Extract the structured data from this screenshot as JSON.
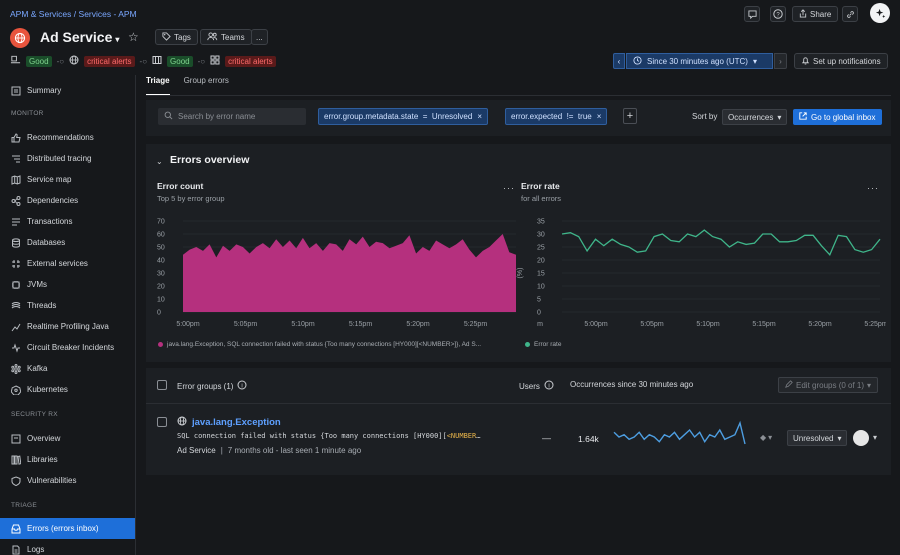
{
  "breadcrumb": {
    "part1": "APM & Services",
    "separator": "/",
    "part2": "Services - APM"
  },
  "entity": {
    "name": "Ad Service"
  },
  "header": {
    "tags_label": "Tags",
    "teams_label": "Teams",
    "more_label": "...",
    "share_label": "Share"
  },
  "status_row": {
    "items": [
      {
        "badge": "Good",
        "type": "good"
      },
      {
        "badge": "critical alerts",
        "type": "crit"
      },
      {
        "badge": "Good",
        "type": "good"
      },
      {
        "badge": "critical alerts",
        "type": "crit"
      }
    ]
  },
  "timepicker": {
    "label": "Since 30 minutes ago (UTC)"
  },
  "notifications": {
    "label": "Set up notifications"
  },
  "sidebar": {
    "summary": "Summary",
    "section_monitor": "MONITOR",
    "monitor_items": [
      "Recommendations",
      "Distributed tracing",
      "Service map",
      "Dependencies",
      "Transactions",
      "Databases",
      "External services",
      "JVMs",
      "Threads",
      "Realtime Profiling Java",
      "Circuit Breaker Incidents",
      "Kafka",
      "Kubernetes"
    ],
    "section_security": "SECURITY RX",
    "security_items": [
      "Overview",
      "Libraries",
      "Vulnerabilities"
    ],
    "section_triage": "TRIAGE",
    "triage_items": [
      "Errors (errors inbox)",
      "Logs"
    ]
  },
  "tabs": [
    "Triage",
    "Group errors"
  ],
  "filters": {
    "search_placeholder": "Search by error name",
    "chip1": "error.group.metadata.state  =  Unresolved",
    "chip2": "error.expected  !=  true",
    "sort_label": "Sort by",
    "sort_value": "Occurrences",
    "global_inbox": "Go to global inbox"
  },
  "overview": {
    "title": "Errors overview"
  },
  "error_count_chart": {
    "title": "Error count",
    "subtitle": "Top 5 by error group",
    "legend": "java.lang.Exception, SQL connection failed with status {Too many connections [HY000][<NUMBER>]}, Ad S..."
  },
  "error_rate_chart": {
    "title": "Error rate",
    "subtitle": "for all errors",
    "unit": "(%)",
    "legend": "Error rate"
  },
  "chart_data": [
    {
      "type": "area",
      "title": "Error count",
      "subtitle": "Top 5 by error group",
      "ylim": [
        0,
        70
      ],
      "y_ticks": [
        "0",
        "10",
        "20",
        "30",
        "40",
        "50",
        "60",
        "70"
      ],
      "x_ticks": [
        "5:00pm",
        "5:05pm",
        "5:10pm",
        "5:15pm",
        "5:20pm",
        "5:25pm"
      ],
      "color": "#b5307e",
      "series": [
        {
          "name": "java.lang.Exception, SQL connection failed with status {Too many connections [HY000][<NUMBER>]}, Ad S...",
          "values": [
            44,
            48,
            50,
            47,
            52,
            42,
            51,
            47,
            52,
            50,
            45,
            50,
            53,
            49,
            56,
            50,
            55,
            49,
            57,
            49,
            53,
            47,
            53,
            52,
            47,
            56,
            52,
            58,
            50,
            54,
            53,
            49,
            51,
            53,
            59,
            45,
            50,
            47,
            55,
            52,
            49,
            52,
            56,
            48,
            42,
            47,
            50,
            55,
            60,
            46,
            44
          ]
        }
      ]
    },
    {
      "type": "line",
      "title": "Error rate",
      "subtitle": "for all errors",
      "ylabel": "(%)",
      "ylim": [
        0,
        35
      ],
      "y_ticks": [
        "0",
        "5",
        "10",
        "15",
        "20",
        "25",
        "30",
        "35"
      ],
      "x_ticks": [
        "m",
        "5:00pm",
        "5:05pm",
        "5:10pm",
        "5:15pm",
        "5:20pm",
        "5:25pm"
      ],
      "color": "#3fb58a",
      "series": [
        {
          "name": "Error rate",
          "values": [
            30,
            30.5,
            29,
            23.5,
            28,
            25.5,
            28,
            26,
            25,
            23,
            23.5,
            29,
            30,
            27.5,
            27,
            30,
            29,
            31.5,
            29,
            28,
            25,
            27,
            26,
            26.5,
            30,
            30,
            27,
            27,
            27.5,
            29.5,
            29.5,
            25.5,
            22,
            29.5,
            29,
            24,
            23,
            24,
            28
          ]
        }
      ]
    }
  ],
  "table": {
    "groups_label": "Error groups (1)",
    "users_label": "Users",
    "occurrences_label": "Occurrences since 30 minutes ago",
    "edit_groups": "Edit groups (0 of 1)",
    "rows": [
      {
        "name": "java.lang.Exception",
        "message_prefix": "SQL connection failed with status {Too many connections [HY000][",
        "message_highlight": "<NUMBER",
        "message_suffix": "…",
        "service": "Ad Service",
        "age": "7 months old - last seen 1 minute ago",
        "users": "—",
        "occurrences": "1.64k",
        "state": "Unresolved",
        "sparkline": [
          8,
          6,
          7,
          5,
          6,
          8,
          5,
          7,
          6,
          4,
          7,
          6,
          8,
          5,
          7,
          9,
          6,
          8,
          4,
          7,
          6,
          9,
          5,
          6,
          7,
          12,
          3
        ]
      }
    ]
  }
}
